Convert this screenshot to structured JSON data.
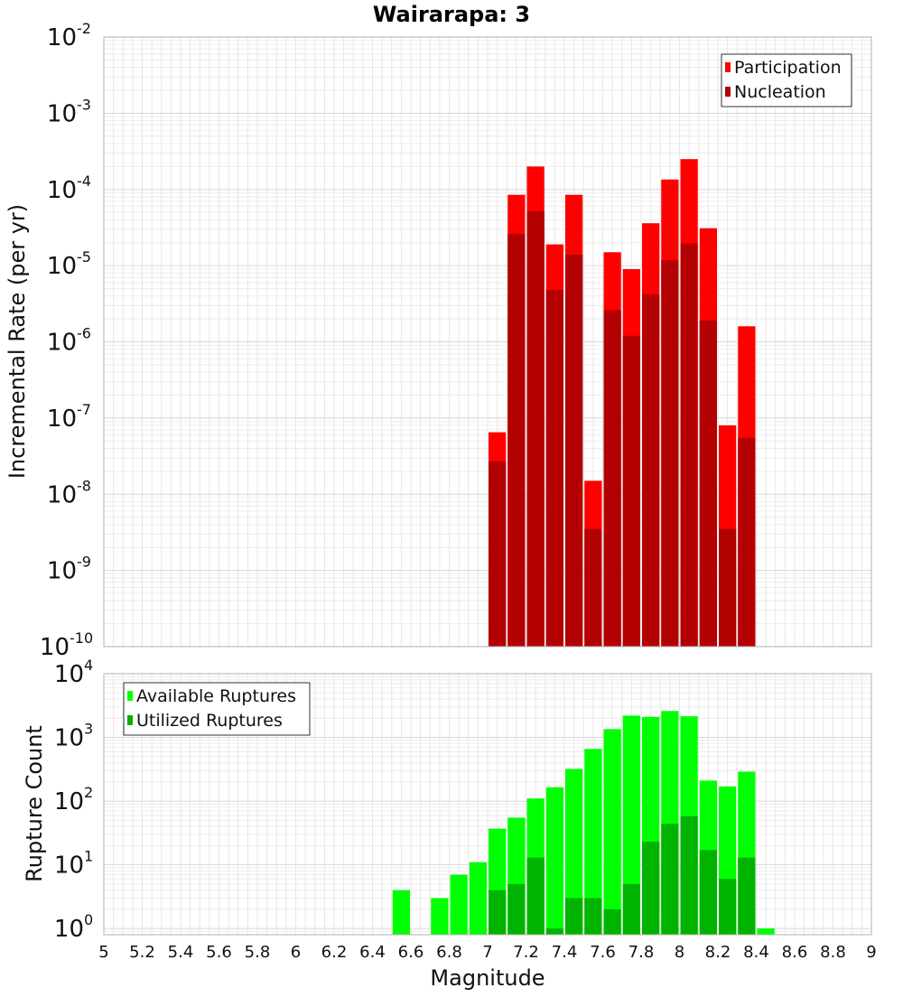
{
  "chart_data": {
    "type": "bar",
    "title": "Wairarapa: 3",
    "xlabel": "Magnitude",
    "xlim": [
      5,
      9
    ],
    "xticks": [
      "5",
      "5.2",
      "5.4",
      "5.6",
      "5.8",
      "6",
      "6.2",
      "6.4",
      "6.6",
      "6.8",
      "7",
      "7.2",
      "7.4",
      "7.6",
      "7.8",
      "8",
      "8.2",
      "8.4",
      "8.6",
      "8.8",
      "9"
    ],
    "grid": true,
    "panels": [
      {
        "ylabel": "Incremental Rate (per yr)",
        "yscale": "log",
        "ylim": [
          1e-10,
          0.01
        ],
        "yticks": [
          {
            "base": "10",
            "exp": "-10"
          },
          {
            "base": "10",
            "exp": "-9"
          },
          {
            "base": "10",
            "exp": "-8"
          },
          {
            "base": "10",
            "exp": "-7"
          },
          {
            "base": "10",
            "exp": "-6"
          },
          {
            "base": "10",
            "exp": "-5"
          },
          {
            "base": "10",
            "exp": "-4"
          },
          {
            "base": "10",
            "exp": "-3"
          },
          {
            "base": "10",
            "exp": "-2"
          }
        ],
        "legend_position": "top-right",
        "bin_centers": [
          7.05,
          7.15,
          7.25,
          7.35,
          7.45,
          7.55,
          7.65,
          7.75,
          7.85,
          7.95,
          8.05,
          8.15,
          8.25,
          8.35
        ],
        "series": [
          {
            "name": "Participation",
            "color": "#ff0000",
            "values": [
              6.5e-08,
              8.5e-05,
              0.0002,
              1.9e-05,
              8.5e-05,
              1.5e-08,
              1.5e-05,
              9e-06,
              3.6e-05,
              0.000135,
              0.00025,
              3.1e-05,
              8e-08,
              1.6e-06
            ]
          },
          {
            "name": "Nucleation",
            "color": "#b30000",
            "values": [
              2.7e-08,
              2.6e-05,
              5.2e-05,
              4.8e-06,
              1.4e-05,
              3.5e-09,
              2.6e-06,
              1.2e-06,
              4.2e-06,
              1.18e-05,
              1.95e-05,
              1.9e-06,
              3.5e-09,
              5.5e-08
            ]
          }
        ]
      },
      {
        "ylabel": "Rupture Count",
        "yscale": "log",
        "ylim": [
          0.8,
          10000
        ],
        "yticks": [
          {
            "base": "10",
            "exp": "0"
          },
          {
            "base": "10",
            "exp": "1"
          },
          {
            "base": "10",
            "exp": "2"
          },
          {
            "base": "10",
            "exp": "3"
          },
          {
            "base": "10",
            "exp": "4"
          }
        ],
        "legend_position": "top-left",
        "bin_centers": [
          6.55,
          6.75,
          6.85,
          6.95,
          7.05,
          7.15,
          7.25,
          7.35,
          7.45,
          7.55,
          7.65,
          7.75,
          7.85,
          7.95,
          8.05,
          8.15,
          8.25,
          8.35,
          8.45
        ],
        "series": [
          {
            "name": "Available Ruptures",
            "color": "#00ff00",
            "values": [
              4,
              3,
              7,
              11,
              37,
              55,
              110,
              165,
              320,
              660,
              1350,
              2200,
              2100,
              2600,
              2150,
              210,
              170,
              290,
              1
            ]
          },
          {
            "name": "Utilized Ruptures",
            "color": "#00b300",
            "values": [
              null,
              null,
              null,
              null,
              4,
              5,
              13,
              1,
              3,
              3,
              2,
              5,
              23,
              44,
              58,
              17,
              6,
              13,
              null
            ]
          }
        ]
      }
    ]
  }
}
